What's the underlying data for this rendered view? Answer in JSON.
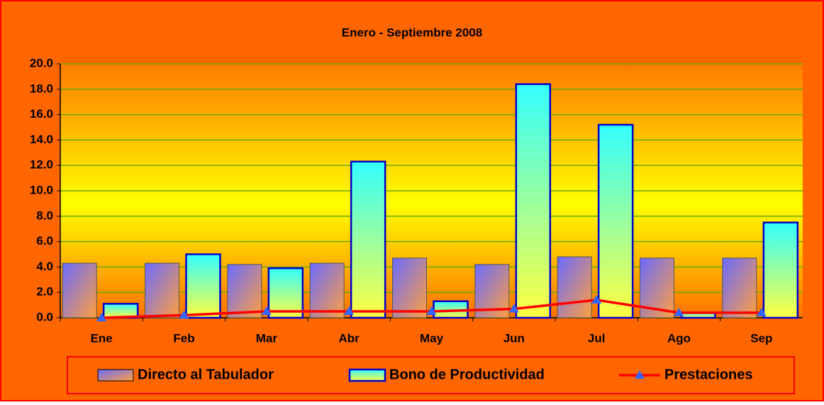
{
  "chart_data": {
    "type": "bar",
    "title": "Enero - Septiembre 2008",
    "categories": [
      "Ene",
      "Feb",
      "Mar",
      "Abr",
      "May",
      "Jun",
      "Jul",
      "Ago",
      "Sep"
    ],
    "series": [
      {
        "name": "Directo al Tabulador",
        "type": "bar",
        "color": "#8080ff",
        "values": [
          4.3,
          4.3,
          4.2,
          4.3,
          4.7,
          4.2,
          4.8,
          4.7,
          4.7
        ]
      },
      {
        "name": "Bono de Productividad",
        "type": "bar",
        "color": "#33ffff",
        "values": [
          1.1,
          5.0,
          3.9,
          12.3,
          1.3,
          18.4,
          15.2,
          0.4,
          7.5
        ]
      },
      {
        "name": "Prestaciones",
        "type": "line",
        "color": "#ff0000",
        "values": [
          0.0,
          0.2,
          0.5,
          0.5,
          0.5,
          0.7,
          1.4,
          0.4,
          0.4
        ]
      }
    ],
    "ylim": [
      0,
      20
    ],
    "yticks": [
      {
        "value": 0,
        "label": "0.0"
      },
      {
        "value": 2,
        "label": "2.0"
      },
      {
        "value": 4,
        "label": "4.0"
      },
      {
        "value": 6,
        "label": "6.0"
      },
      {
        "value": 8,
        "label": "8.0"
      },
      {
        "value": 10,
        "label": "10.0"
      },
      {
        "value": 12,
        "label": "12.0"
      },
      {
        "value": 14,
        "label": "14.0"
      },
      {
        "value": 16,
        "label": "16.0"
      },
      {
        "value": 18,
        "label": "18.0"
      },
      {
        "value": 20,
        "label": "20.0"
      }
    ],
    "grid": true,
    "legend": "bottom"
  }
}
